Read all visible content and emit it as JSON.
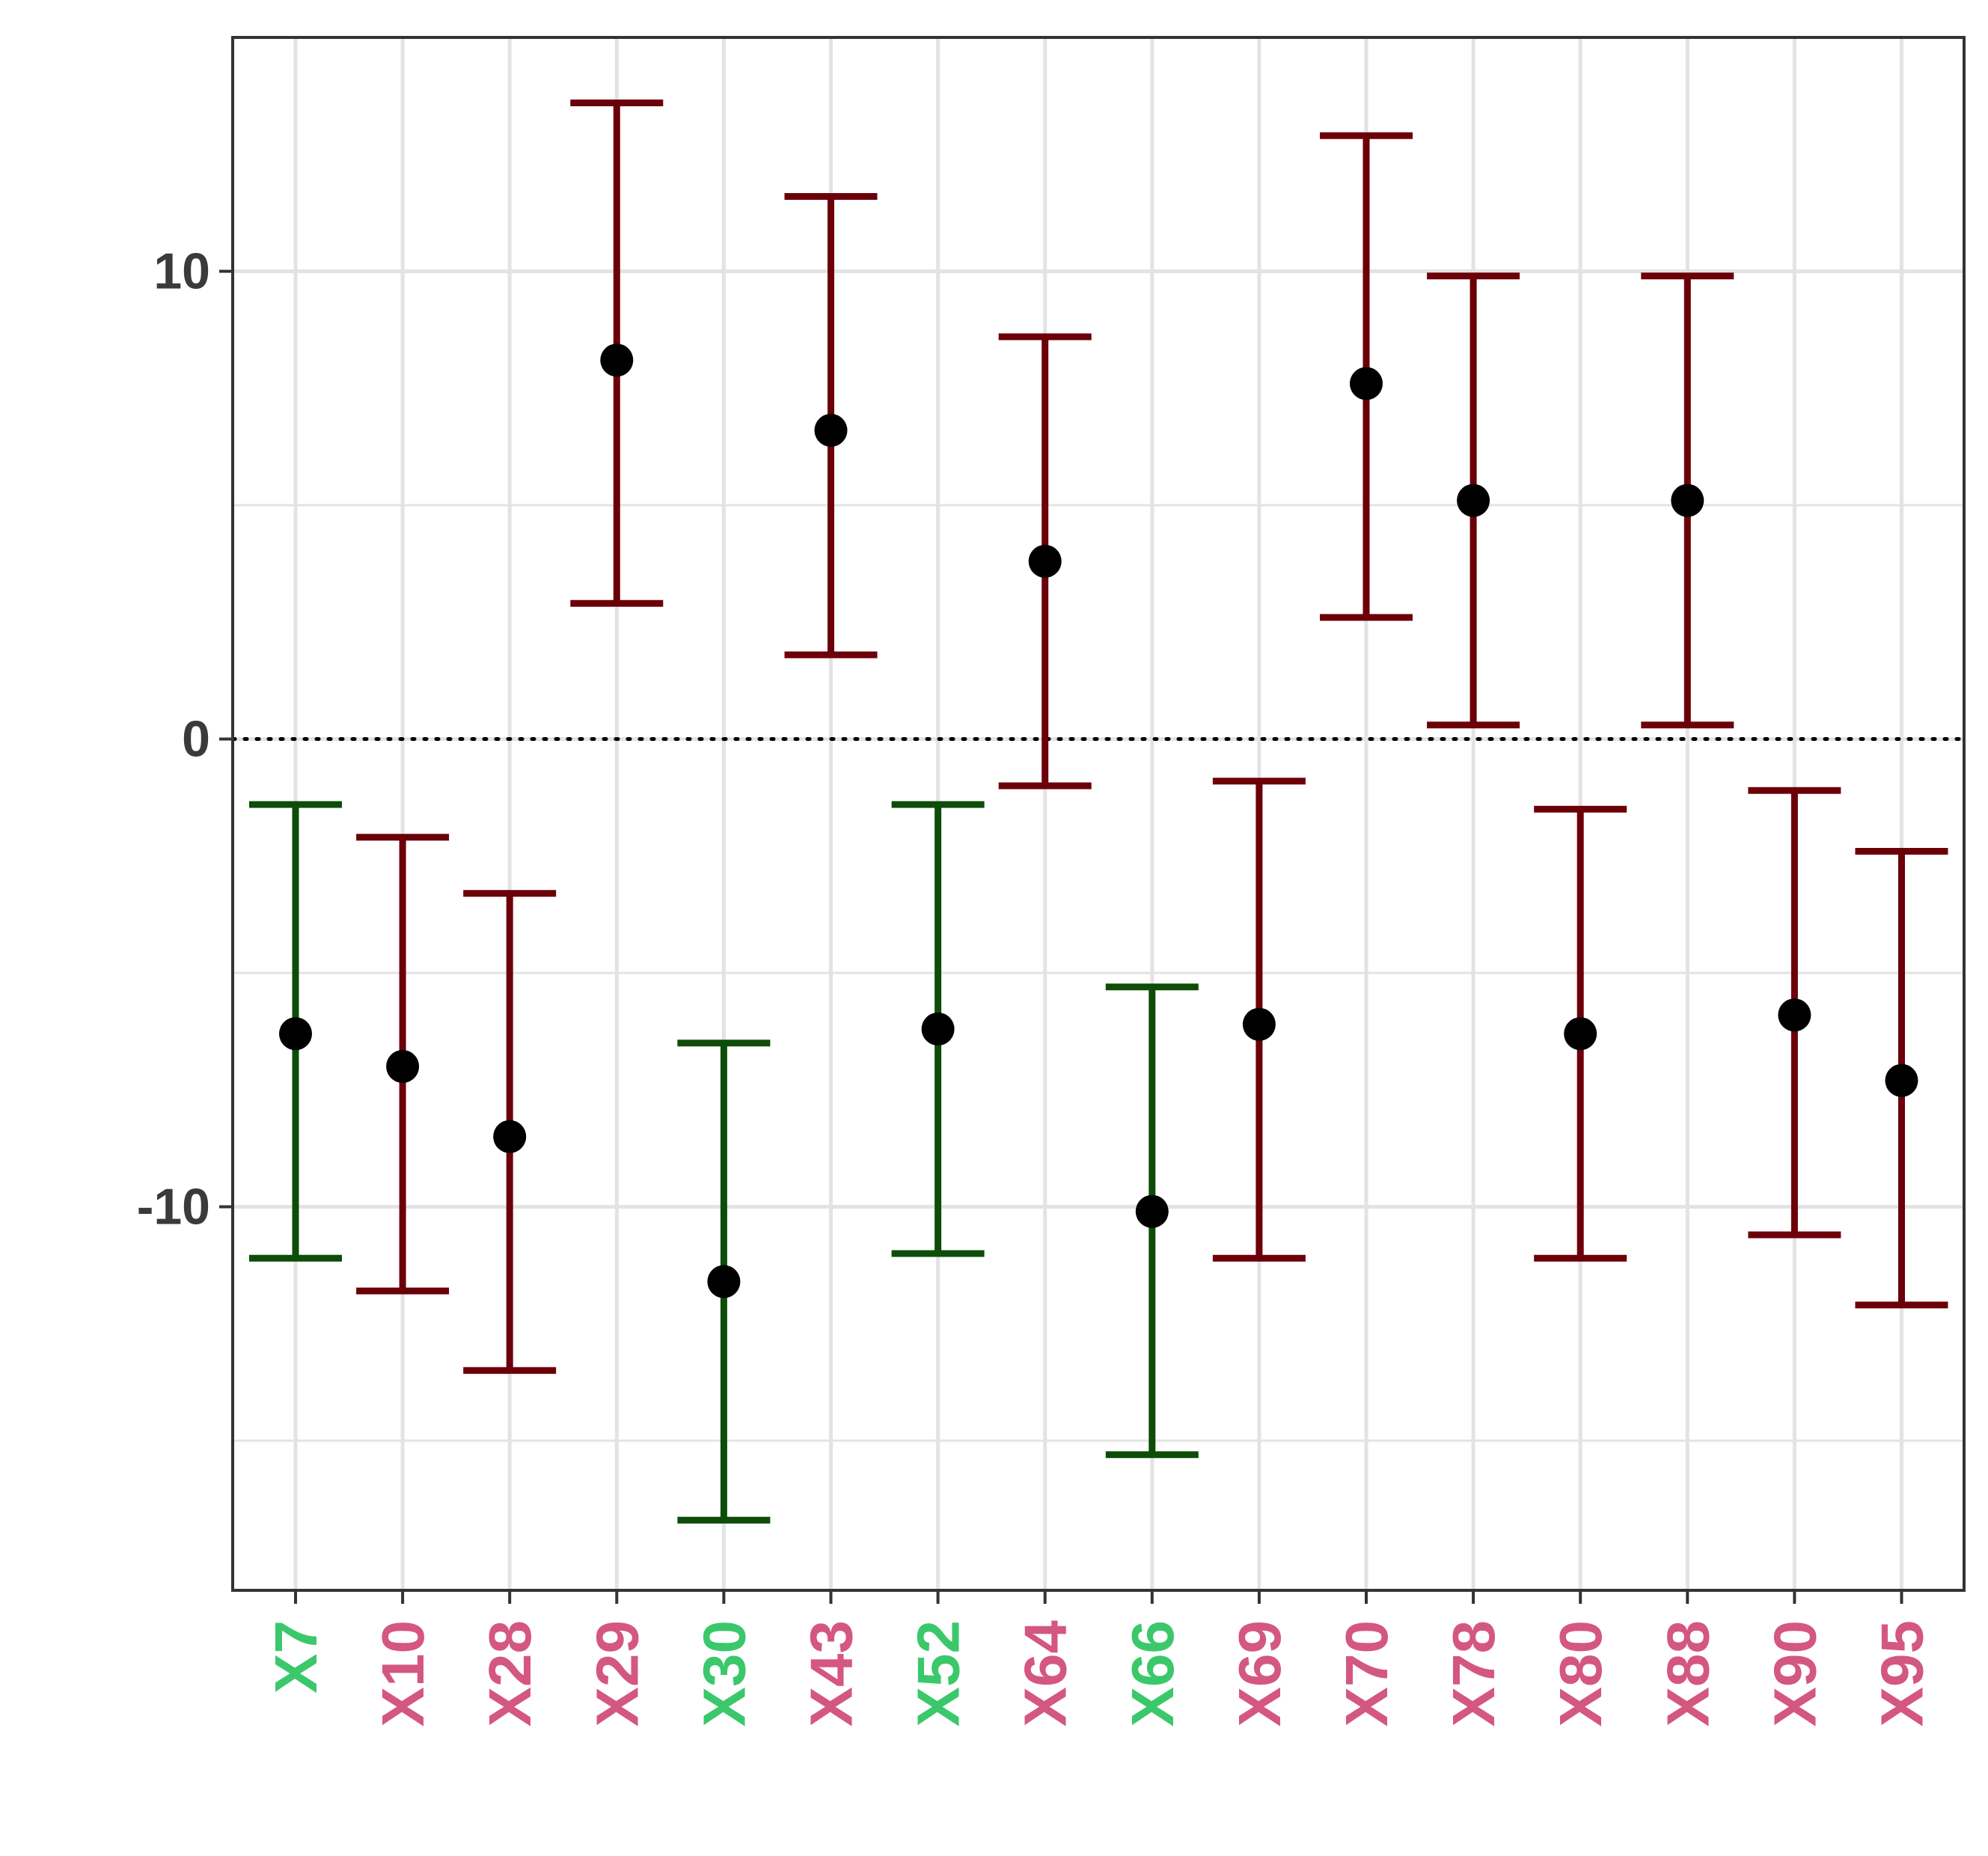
{
  "chart_data": {
    "type": "errorbar",
    "categories": [
      "X7",
      "X10",
      "X28",
      "X29",
      "X30",
      "X43",
      "X52",
      "X64",
      "X66",
      "X69",
      "X70",
      "X78",
      "X80",
      "X88",
      "X90",
      "X95"
    ],
    "estimate": [
      -6.3,
      -7.0,
      -8.5,
      8.1,
      -11.6,
      6.6,
      -6.2,
      3.8,
      -10.1,
      -6.1,
      7.6,
      5.1,
      -6.3,
      5.1,
      -5.9,
      -7.3
    ],
    "lower": [
      -11.1,
      -11.8,
      -13.5,
      2.9,
      -16.7,
      1.8,
      -11.0,
      -1.0,
      -15.3,
      -11.1,
      2.6,
      0.3,
      -11.1,
      0.3,
      -10.6,
      -12.1
    ],
    "upper": [
      -1.4,
      -2.1,
      -3.3,
      13.6,
      -6.5,
      11.6,
      -1.4,
      8.6,
      -5.3,
      -0.9,
      12.9,
      9.9,
      -1.5,
      9.9,
      -1.1,
      -2.4
    ],
    "group": [
      "green",
      "red",
      "red",
      "red",
      "green",
      "red",
      "green",
      "red",
      "green",
      "red",
      "red",
      "red",
      "red",
      "red",
      "red",
      "red"
    ],
    "ylim": [
      -18.2,
      15.0
    ],
    "y_ticks": [
      10,
      0,
      -10
    ],
    "y_tick_labels": [
      "10",
      "0",
      "-10"
    ],
    "reference_line": 0,
    "grid": true,
    "title": "",
    "xlabel": "",
    "ylabel": "",
    "colors": {
      "green_bar": "#0d4d08",
      "red_bar": "#6b0008",
      "green_label": "#3ac86b",
      "red_label": "#d4577f",
      "point": "#000000",
      "grid": "#e3e3e3",
      "axis": "#333333"
    }
  }
}
